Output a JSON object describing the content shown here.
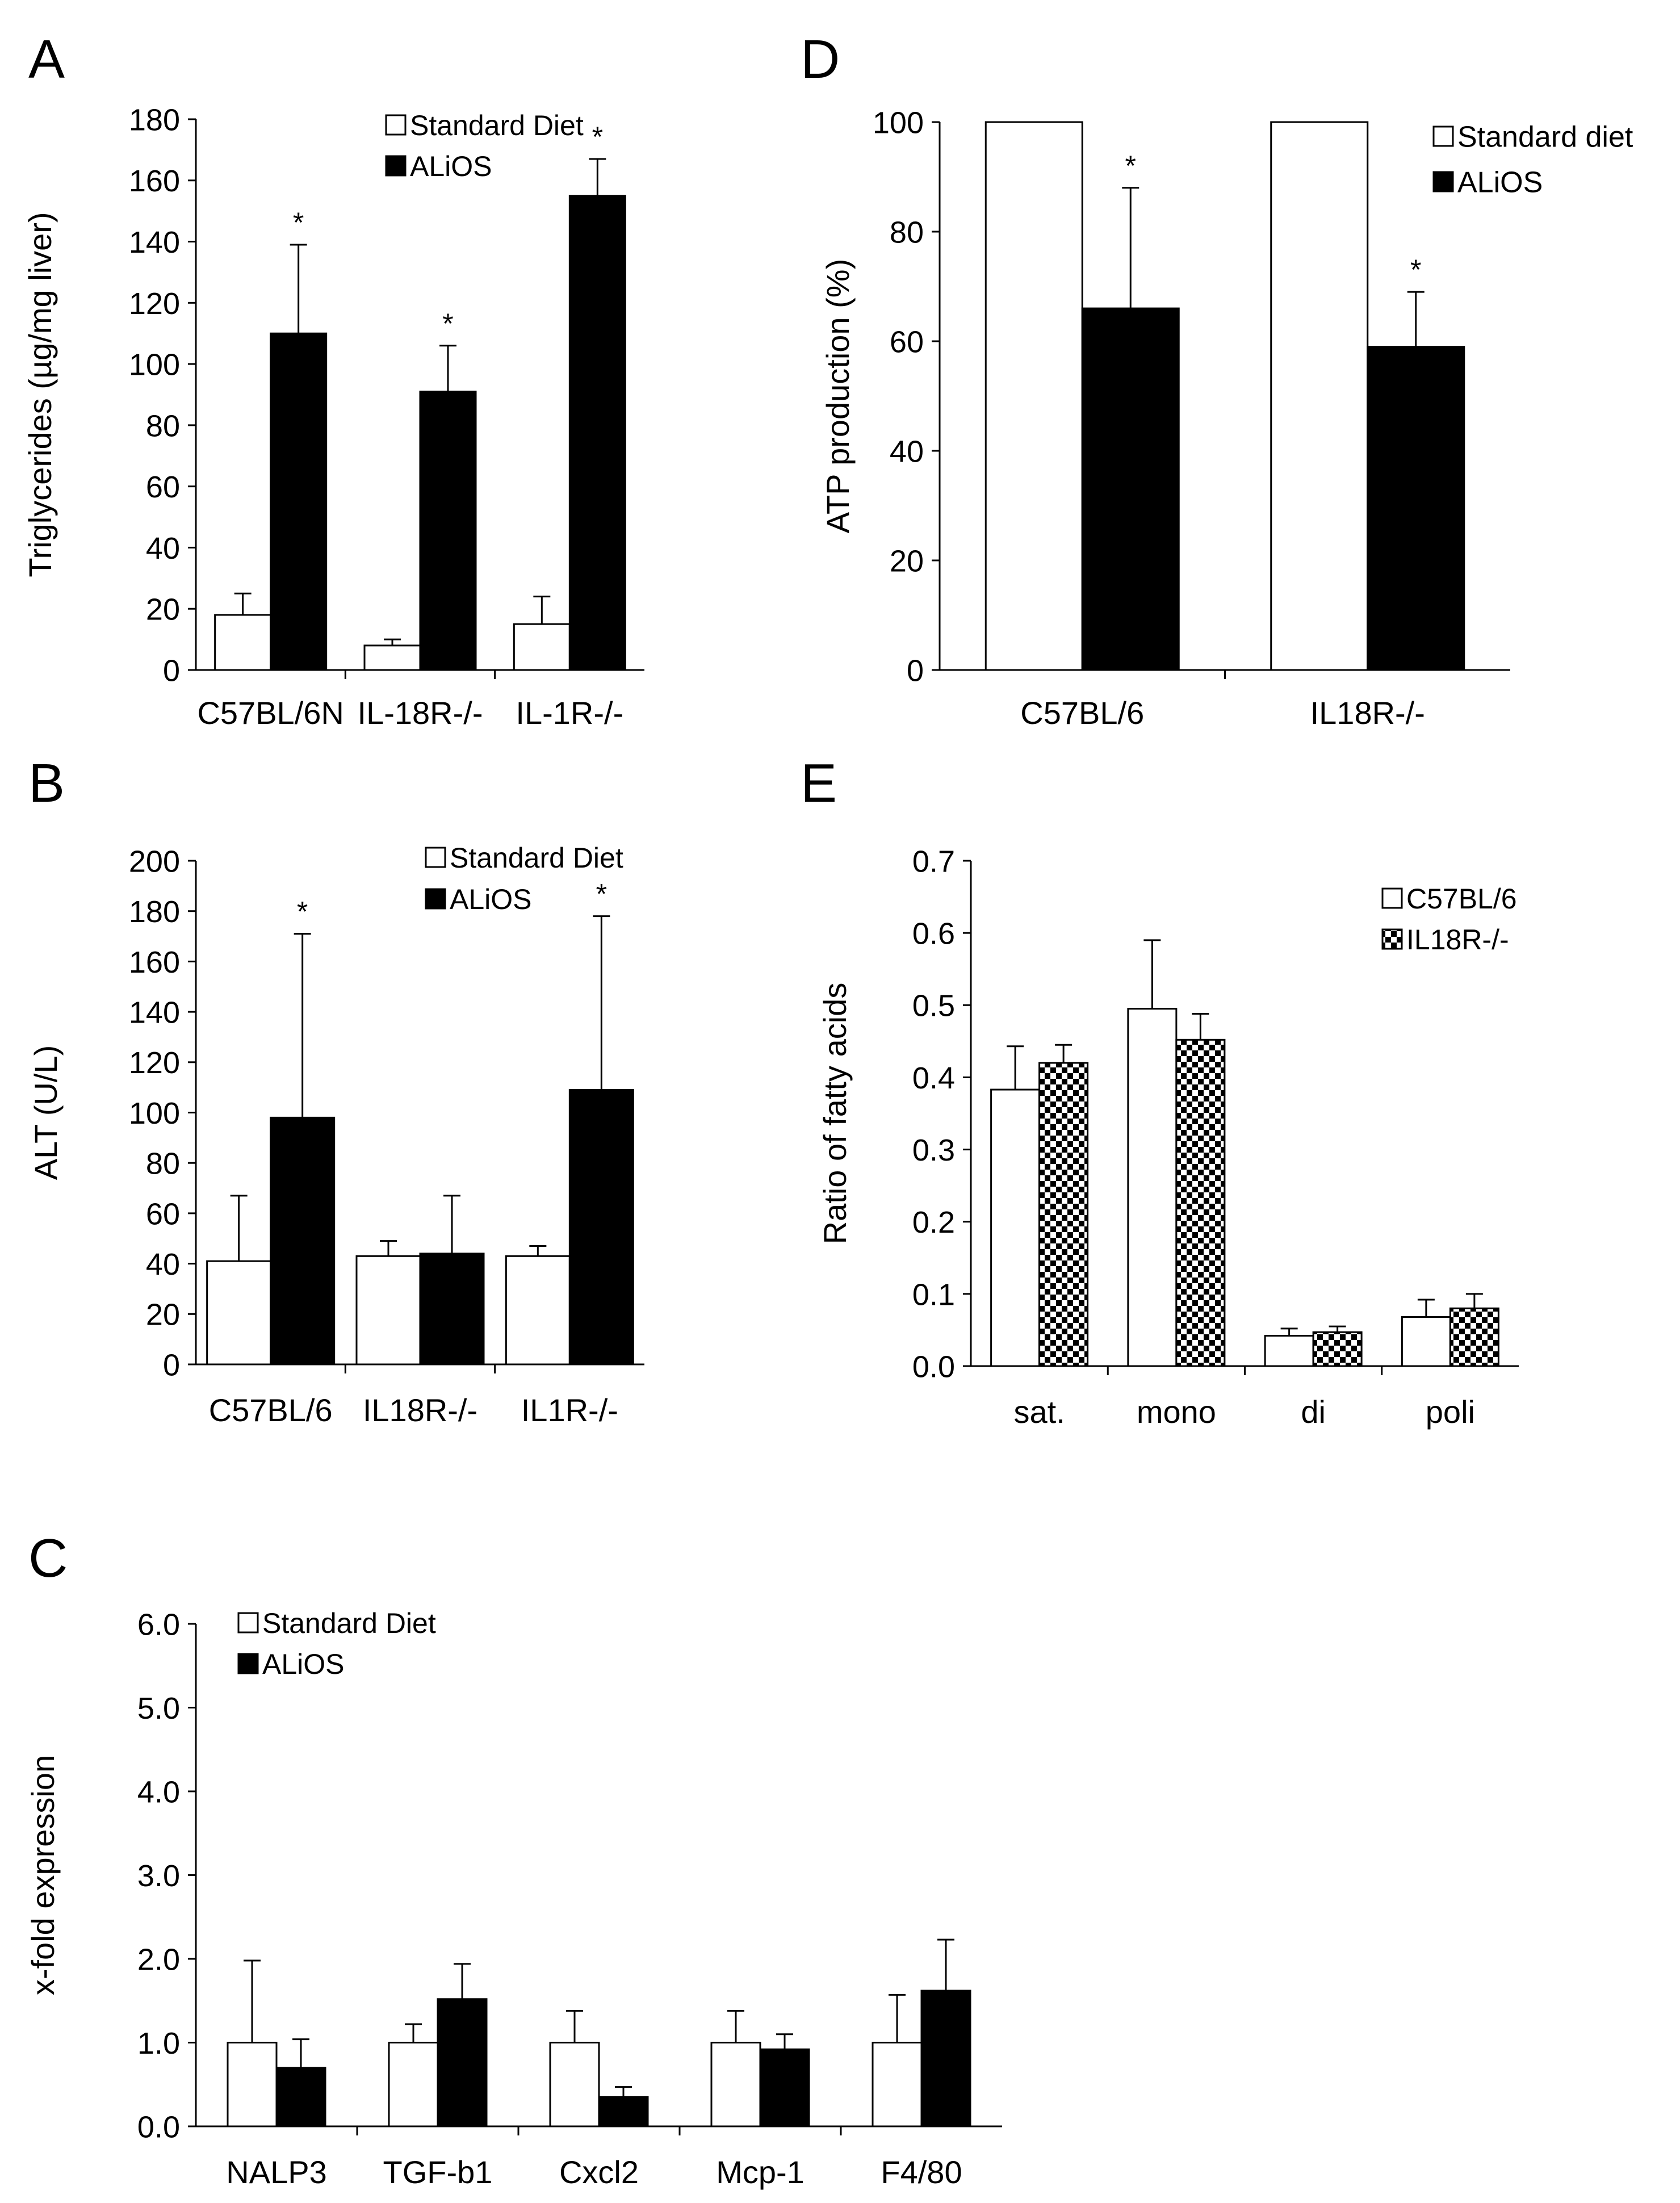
{
  "colors": {
    "white_bar": "#ffffff",
    "black_bar": "#000000",
    "axis": "#000000"
  },
  "panels": {
    "A": {
      "letter": "A"
    },
    "B": {
      "letter": "B"
    },
    "C": {
      "letter": "C"
    },
    "D": {
      "letter": "D"
    },
    "E": {
      "letter": "E"
    }
  },
  "chart_data": [
    {
      "id": "A",
      "type": "bar",
      "title": "",
      "xlabel": "",
      "ylabel": "Triglycerides (µg/mg liver)",
      "ylim": [
        0,
        180
      ],
      "yticks": [
        "0",
        "20",
        "40",
        "60",
        "80",
        "100",
        "120",
        "140",
        "160",
        "180"
      ],
      "categories": [
        "C57BL/6N",
        "IL-18R-/-",
        "IL-1R-/-"
      ],
      "series": [
        {
          "name": "Standard Diet",
          "fill": "white",
          "values": [
            18,
            8,
            15
          ],
          "errors": [
            7,
            2,
            9
          ],
          "stars": [
            "",
            "",
            ""
          ]
        },
        {
          "name": "ALiOS",
          "fill": "black",
          "values": [
            110,
            91,
            155
          ],
          "errors": [
            29,
            15,
            12
          ],
          "stars": [
            "*",
            "*",
            "*"
          ]
        }
      ]
    },
    {
      "id": "B",
      "type": "bar",
      "title": "",
      "xlabel": "",
      "ylabel": "ALT (U/L)",
      "ylim": [
        0,
        200
      ],
      "yticks": [
        "0",
        "20",
        "40",
        "60",
        "80",
        "100",
        "120",
        "140",
        "160",
        "180",
        "200"
      ],
      "categories": [
        "C57BL/6",
        "IL18R-/-",
        "IL1R-/-"
      ],
      "series": [
        {
          "name": "Standard Diet",
          "fill": "white",
          "values": [
            41,
            43,
            43
          ],
          "errors": [
            26,
            6,
            4
          ],
          "stars": [
            "",
            "",
            ""
          ]
        },
        {
          "name": "ALiOS",
          "fill": "black",
          "values": [
            98,
            44,
            109
          ],
          "errors": [
            73,
            23,
            69
          ],
          "stars": [
            "*",
            "",
            "*"
          ]
        }
      ]
    },
    {
      "id": "C",
      "type": "bar",
      "title": "",
      "xlabel": "",
      "ylabel": "x-fold expression",
      "ylim": [
        0,
        6
      ],
      "yticks": [
        "0.0",
        "1.0",
        "2.0",
        "3.0",
        "4.0",
        "5.0",
        "6.0"
      ],
      "categories": [
        "NALP3",
        "TGF-b1",
        "Cxcl2",
        "Mcp-1",
        "F4/80"
      ],
      "series": [
        {
          "name": "Standard Diet",
          "fill": "white",
          "values": [
            1.0,
            1.0,
            1.0,
            1.0,
            1.0
          ],
          "errors": [
            0.98,
            0.22,
            0.38,
            0.38,
            0.57
          ],
          "stars": [
            "",
            "",
            "",
            "",
            ""
          ]
        },
        {
          "name": "ALiOS",
          "fill": "black",
          "values": [
            0.7,
            1.52,
            0.35,
            0.92,
            1.62
          ],
          "errors": [
            0.34,
            0.42,
            0.12,
            0.18,
            0.61
          ],
          "stars": [
            "",
            "",
            "",
            "",
            ""
          ]
        }
      ]
    },
    {
      "id": "D",
      "type": "bar",
      "title": "",
      "xlabel": "",
      "ylabel": "ATP production (%)",
      "ylim": [
        0,
        100
      ],
      "yticks": [
        "0",
        "20",
        "40",
        "60",
        "80",
        "100"
      ],
      "categories": [
        "C57BL/6",
        "IL18R-/-"
      ],
      "series": [
        {
          "name": "Standard diet",
          "fill": "white",
          "values": [
            100,
            100
          ],
          "errors": [
            0,
            0
          ],
          "stars": [
            "",
            ""
          ]
        },
        {
          "name": "ALiOS",
          "fill": "black",
          "values": [
            66,
            59
          ],
          "errors": [
            22,
            10
          ],
          "stars": [
            "*",
            "*"
          ]
        }
      ]
    },
    {
      "id": "E",
      "type": "bar",
      "title": "",
      "xlabel": "",
      "ylabel": "Ratio of fatty acids",
      "ylim": [
        0,
        0.7
      ],
      "yticks": [
        "0.0",
        "0.1",
        "0.2",
        "0.3",
        "0.4",
        "0.5",
        "0.6",
        "0.7"
      ],
      "categories": [
        "sat.",
        "mono",
        "di",
        "poli"
      ],
      "series": [
        {
          "name": "C57BL/6",
          "fill": "white",
          "values": [
            0.383,
            0.495,
            0.042,
            0.068
          ],
          "errors": [
            0.06,
            0.095,
            0.01,
            0.024
          ],
          "stars": [
            "",
            "",
            "",
            ""
          ]
        },
        {
          "name": "IL18R-/-",
          "fill": "checker",
          "values": [
            0.42,
            0.452,
            0.047,
            0.08
          ],
          "errors": [
            0.025,
            0.036,
            0.008,
            0.02
          ],
          "stars": [
            "",
            "",
            "",
            ""
          ]
        }
      ]
    }
  ]
}
